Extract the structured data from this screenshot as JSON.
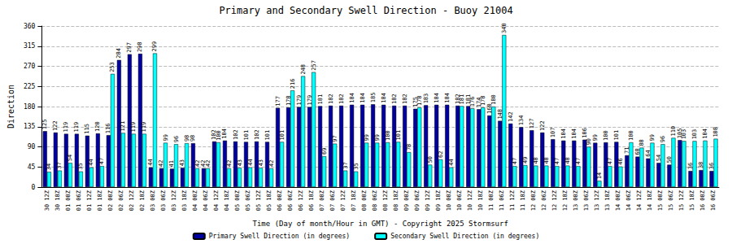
{
  "chart_data": {
    "type": "bar",
    "title": "Primary and Secondary Swell Direction - Buoy 21004",
    "x_label": "Time (Day of month/Hour in GMT) - Copyright 2025 Stormsurf",
    "y_label": "Direction",
    "categories": [
      "30 12Z",
      "30 18Z",
      "01 00Z",
      "01 06Z",
      "01 12Z",
      "01 18Z",
      "02 00Z",
      "02 06Z",
      "02 12Z",
      "02 18Z",
      "03 00Z",
      "03 06Z",
      "03 12Z",
      "03 18Z",
      "04 00Z",
      "04 06Z",
      "04 12Z",
      "04 18Z",
      "05 00Z",
      "05 06Z",
      "05 12Z",
      "05 18Z",
      "06 00Z",
      "06 06Z",
      "06 12Z",
      "06 18Z",
      "07 00Z",
      "07 06Z",
      "07 12Z",
      "07 18Z",
      "08 00Z",
      "08 06Z",
      "08 12Z",
      "08 18Z",
      "09 00Z",
      "09 06Z",
      "09 12Z",
      "09 18Z",
      "10 00Z",
      "10 06Z",
      "10 12Z",
      "10 18Z",
      "11 00Z",
      "11 06Z",
      "11 12Z",
      "11 18Z",
      "12 00Z",
      "12 06Z",
      "12 12Z",
      "12 18Z",
      "13 00Z",
      "13 06Z",
      "13 12Z",
      "13 18Z",
      "14 00Z",
      "14 06Z",
      "14 12Z",
      "14 18Z",
      "15 00Z",
      "15 06Z",
      "15 12Z",
      "15 18Z",
      "16 00Z",
      "16 06Z"
    ],
    "series": [
      {
        "name": "Primary Swell Direction (in degrees)",
        "color": "#0000a0",
        "values": [
          125,
          122,
          119,
          119,
          115,
          120,
          116,
          284,
          297,
          298,
          44,
          42,
          41,
          43,
          98,
          42,
          102,
          104,
          102,
          101,
          102,
          101,
          177,
          178,
          179,
          179,
          181,
          182,
          182,
          184,
          184,
          185,
          184,
          182,
          182,
          175,
          183,
          184,
          184,
          182,
          181,
          174,
          160,
          148,
          142,
          134,
          127,
          122,
          107,
          104,
          104,
          106,
          99,
          100,
          101,
          71,
          68,
          64,
          54,
          50,
          105,
          36,
          38,
          36
        ]
      },
      {
        "name": "Secondary Swell Direction (in degrees)",
        "color": "#00ffff",
        "values": [
          34,
          37,
          54,
          35,
          44,
          47,
          253,
          121,
          119,
          119,
          299,
          99,
          96,
          98,
          42,
          42,
          100,
          42,
          43,
          44,
          43,
          42,
          101,
          216,
          248,
          257,
          69,
          97,
          37,
          35,
          99,
          99,
          100,
          101,
          78,
          178,
          50,
          62,
          44,
          181,
          176,
          178,
          180,
          340,
          47,
          49,
          48,
          48,
          47,
          48,
          47,
          90,
          14,
          47,
          46,
          100,
          88,
          99,
          96,
          110,
          103,
          103,
          104,
          108
        ]
      }
    ],
    "ylim": [
      0,
      360
    ],
    "yticks": [
      0,
      45,
      90,
      135,
      180,
      225,
      270,
      315,
      360
    ],
    "grid": true,
    "legend": "bottom",
    "data_labels": true
  }
}
